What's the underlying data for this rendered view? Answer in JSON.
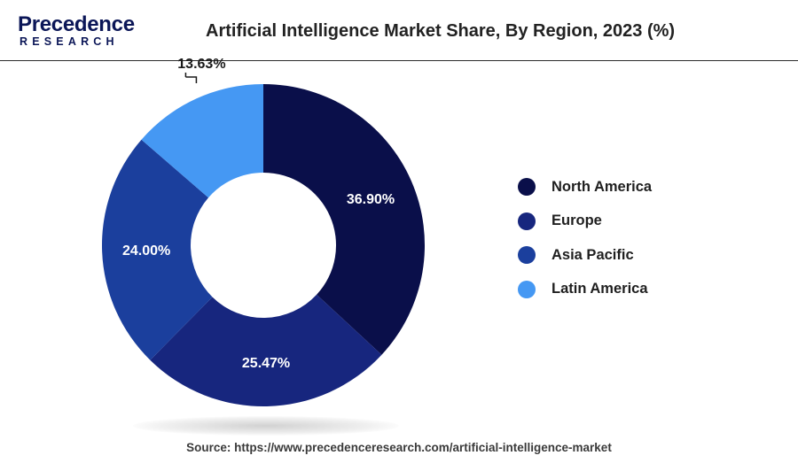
{
  "header": {
    "logo_brand": "Precedence",
    "logo_sub": "RESEARCH",
    "title": "Artificial Intelligence Market Share, By Region, 2023 (%)"
  },
  "chart_data": {
    "type": "pie",
    "variant": "donut",
    "title": "Artificial Intelligence Market Share, By Region, 2023 (%)",
    "categories": [
      "North America",
      "Europe",
      "Asia Pacific",
      "Latin America"
    ],
    "values": [
      36.9,
      25.47,
      24.0,
      13.63
    ],
    "labels": [
      "36.90%",
      "25.47%",
      "24.00%",
      "13.63%"
    ],
    "colors": [
      "#0a0f4a",
      "#17267e",
      "#1b3f9d",
      "#4598f3"
    ],
    "legend_position": "right"
  },
  "colors": {
    "label_text": "#ffffff",
    "title_text": "#222222"
  },
  "footer": {
    "source": "Source: https://www.precedenceresearch.com/artificial-intelligence-market"
  }
}
